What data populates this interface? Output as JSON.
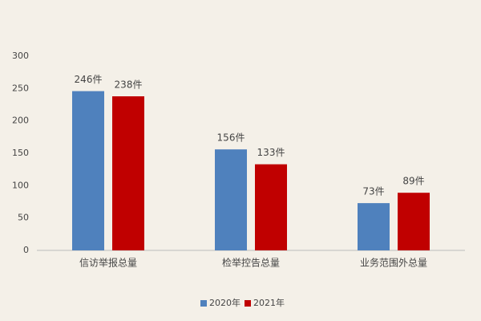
{
  "chart_data": {
    "type": "bar",
    "categories": [
      "信访举报总量",
      "检举控告总量",
      "业务范围外总量"
    ],
    "series": [
      {
        "name": "2020年",
        "color": "#4f81bd",
        "values": [
          246,
          156,
          73
        ],
        "value_labels": [
          "246件",
          "156件",
          "73件"
        ]
      },
      {
        "name": "2021年",
        "color": "#c00000",
        "values": [
          238,
          133,
          89
        ],
        "value_labels": [
          "238件",
          "133件",
          "89件"
        ]
      }
    ],
    "ylim": [
      0,
      300
    ],
    "yticks": [
      0,
      50,
      100,
      150,
      200,
      250,
      300
    ],
    "grid": false,
    "legend": "bottom"
  }
}
